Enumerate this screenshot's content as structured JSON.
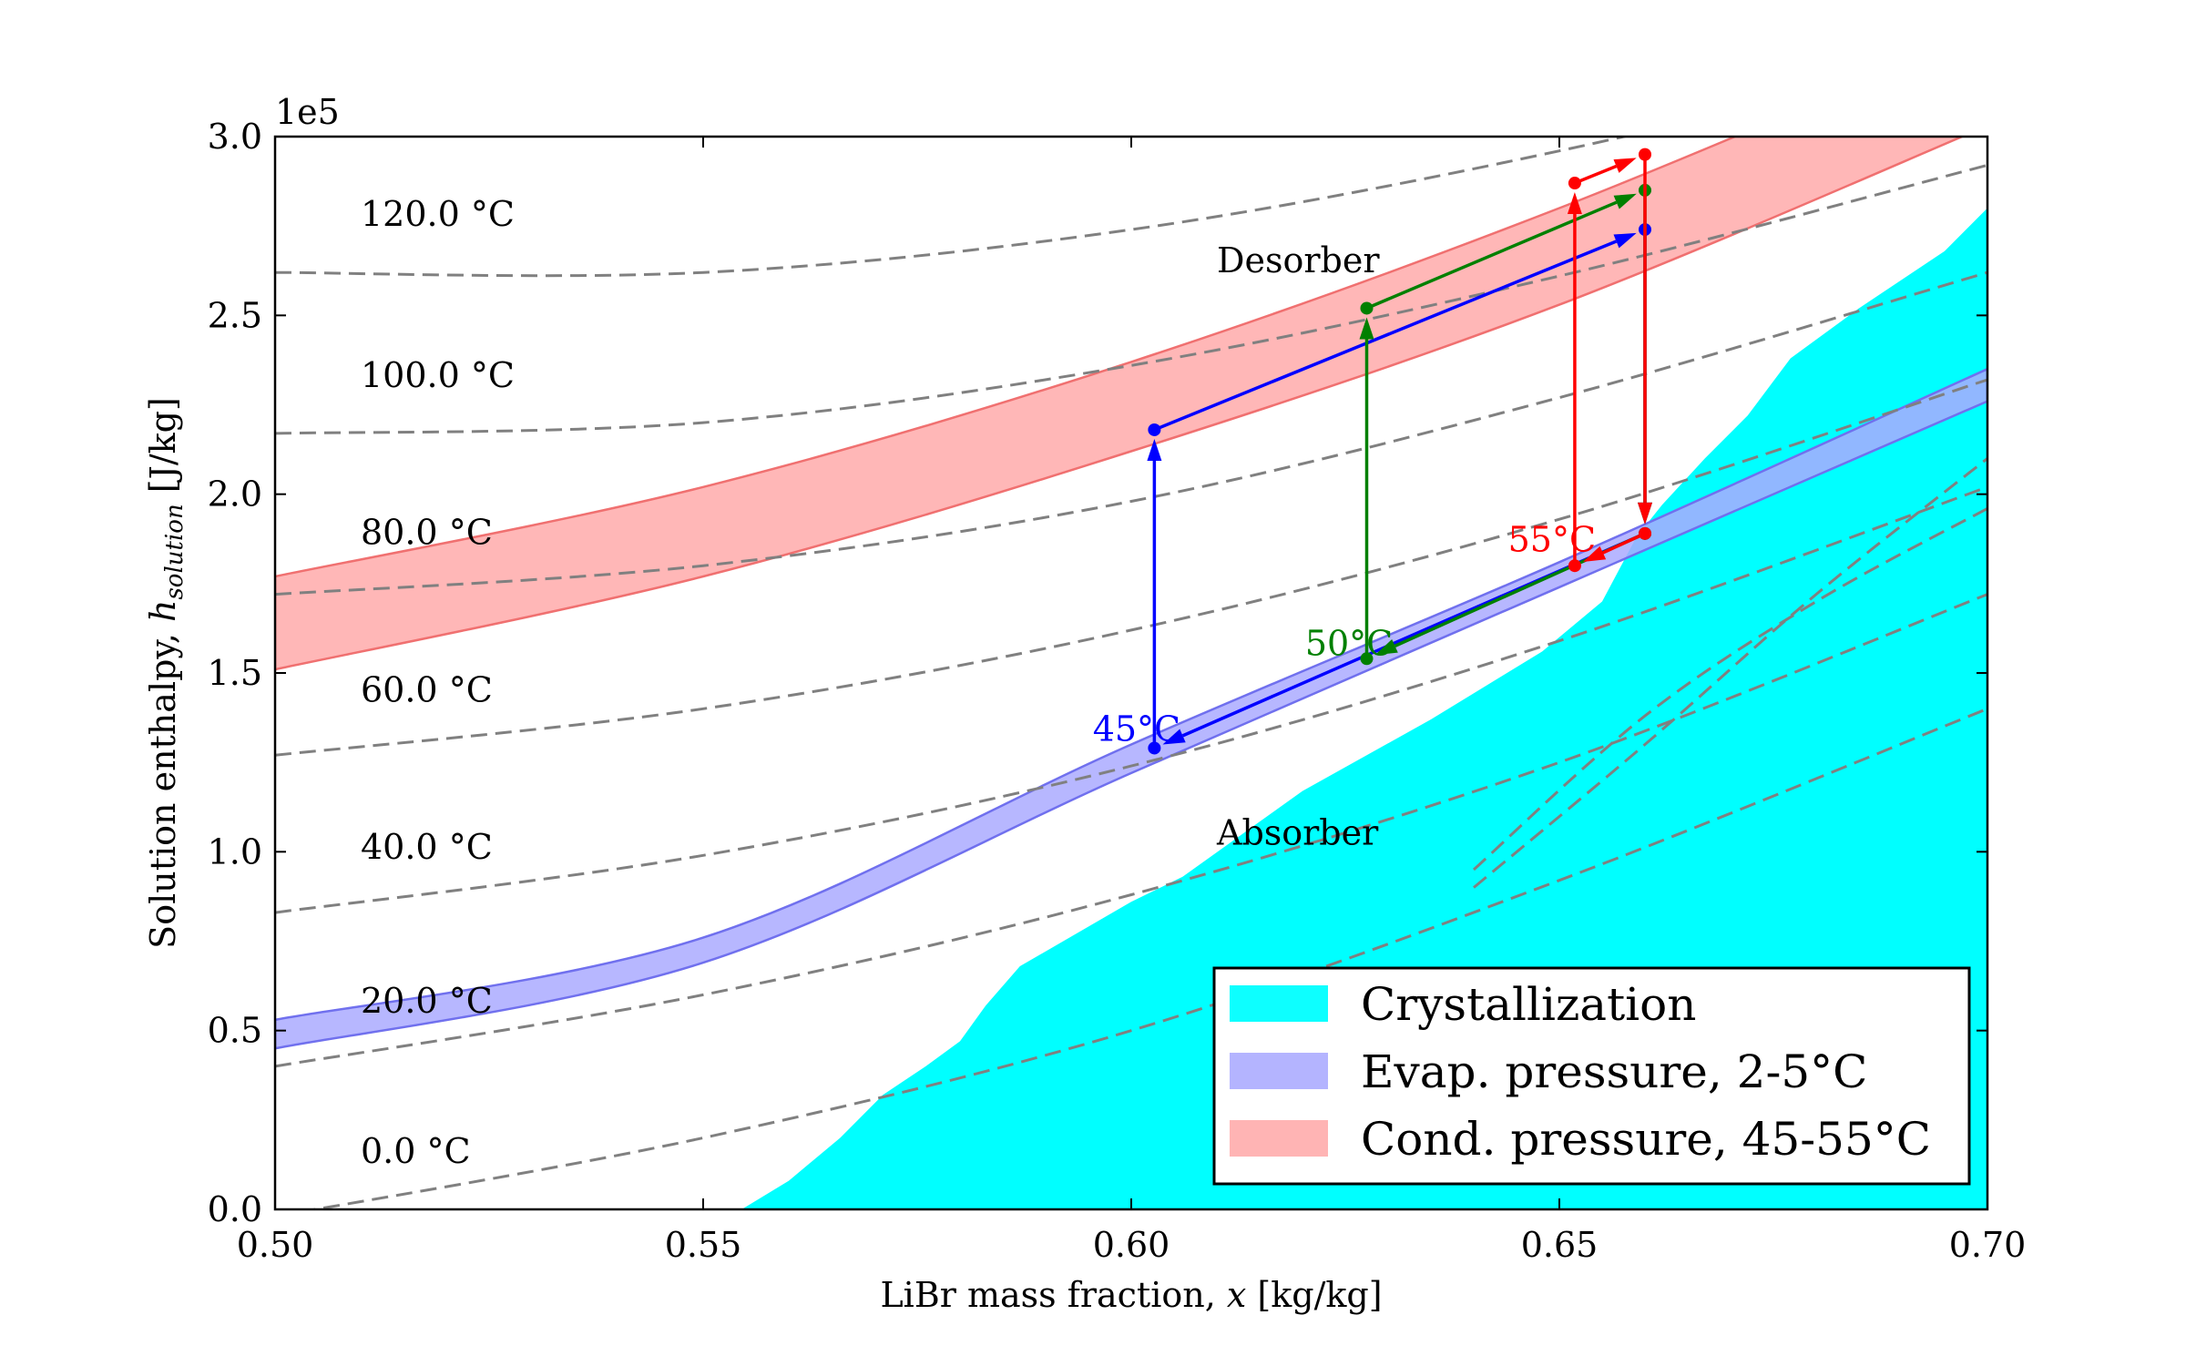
{
  "chart_data": {
    "type": "line",
    "title": "",
    "xlabel": "LiBr mass fraction, x [kg/kg]",
    "ylabel": "Solution enthalpy, h_solution [J/kg]",
    "x_label_parts": {
      "pre": "LiBr mass fraction, ",
      "var": "x",
      "post": " [kg/kg]"
    },
    "y_label_parts": {
      "pre": "Solution enthalpy, ",
      "var": "h",
      "sub": "solution",
      "post": " [J/kg]"
    },
    "y_multiplier": "1e5",
    "xlim": [
      0.5,
      0.7
    ],
    "ylim": [
      0.0,
      3.0
    ],
    "x_ticks": [
      0.5,
      0.55,
      0.6,
      0.65,
      0.7
    ],
    "x_tick_labels": [
      "0.50",
      "0.55",
      "0.60",
      "0.65",
      "0.70"
    ],
    "y_ticks": [
      0.0,
      0.5,
      1.0,
      1.5,
      2.0,
      2.5,
      3.0
    ],
    "y_tick_labels": [
      "0.0",
      "0.5",
      "1.0",
      "1.5",
      "2.0",
      "2.5",
      "3.0"
    ],
    "grid": false,
    "legend_position": "bottom-right",
    "isotherms": [
      {
        "label": "0.0 °C",
        "label_pos": [
          0.51,
          0.13
        ],
        "x": [
          0.5,
          0.55,
          0.6,
          0.65,
          0.7
        ],
        "y": [
          -0.02,
          0.2,
          0.5,
          0.92,
          1.4
        ]
      },
      {
        "label": "20.0 °C",
        "label_pos": [
          0.51,
          0.55
        ],
        "x": [
          0.5,
          0.55,
          0.6,
          0.65,
          0.7
        ],
        "y": [
          0.4,
          0.6,
          0.88,
          1.25,
          1.72
        ]
      },
      {
        "label": "40.0 °C",
        "label_pos": [
          0.51,
          0.98
        ],
        "x": [
          0.5,
          0.55,
          0.6,
          0.65,
          0.7
        ],
        "y": [
          0.83,
          0.99,
          1.24,
          1.59,
          2.02
        ]
      },
      {
        "label": "60.0 °C",
        "label_pos": [
          0.51,
          1.42
        ],
        "x": [
          0.5,
          0.55,
          0.6,
          0.65,
          0.7
        ],
        "y": [
          1.27,
          1.4,
          1.62,
          1.93,
          2.32
        ]
      },
      {
        "label": "80.0 °C",
        "label_pos": [
          0.51,
          1.86
        ],
        "x": [
          0.5,
          0.55,
          0.6,
          0.65,
          0.7
        ],
        "y": [
          1.72,
          1.8,
          1.98,
          2.27,
          2.62
        ]
      },
      {
        "label": "100.0 °C",
        "label_pos": [
          0.51,
          2.3
        ],
        "x": [
          0.5,
          0.55,
          0.6,
          0.65,
          0.7
        ],
        "y": [
          2.17,
          2.2,
          2.36,
          2.61,
          2.92
        ]
      },
      {
        "label": "120.0 °C",
        "label_pos": [
          0.51,
          2.75
        ],
        "x": [
          0.5,
          0.55,
          0.6,
          0.65,
          0.7
        ],
        "y": [
          2.62,
          2.62,
          2.74,
          2.96,
          3.25
        ]
      }
    ],
    "extra_dashed_lines": [
      {
        "x": [
          0.64,
          0.66,
          0.68,
          0.7
        ],
        "y": [
          0.9,
          1.3,
          1.72,
          2.1
        ]
      },
      {
        "x": [
          0.64,
          0.66,
          0.68,
          0.7
        ],
        "y": [
          0.95,
          1.38,
          1.7,
          1.96
        ]
      }
    ],
    "crystallization_boundary": {
      "x": [
        0.5545,
        0.56,
        0.566,
        0.571,
        0.576,
        0.58,
        0.583,
        0.587,
        0.6,
        0.606,
        0.62,
        0.635,
        0.648,
        0.655,
        0.659,
        0.662,
        0.667,
        0.672,
        0.677,
        0.685,
        0.69,
        0.695,
        0.7
      ],
      "y": [
        0.0,
        0.08,
        0.2,
        0.32,
        0.4,
        0.47,
        0.57,
        0.68,
        0.86,
        0.93,
        1.17,
        1.37,
        1.56,
        1.7,
        1.88,
        1.97,
        2.1,
        2.22,
        2.38,
        2.52,
        2.6,
        2.68,
        2.8
      ]
    },
    "evap_band": {
      "x": [
        0.5,
        0.55,
        0.6,
        0.65,
        0.7
      ],
      "upper": [
        0.53,
        0.76,
        1.3,
        1.81,
        2.35
      ],
      "lower": [
        0.45,
        0.69,
        1.22,
        1.74,
        2.26
      ]
    },
    "cond_band": {
      "x": [
        0.5,
        0.55,
        0.6,
        0.65,
        0.7
      ],
      "upper": [
        1.77,
        2.02,
        2.37,
        2.8,
        3.3
      ],
      "lower": [
        1.51,
        1.77,
        2.12,
        2.53,
        3.03
      ]
    },
    "region_labels": [
      {
        "text": "Desorber",
        "x": 0.61,
        "y": 2.62
      },
      {
        "text": "Absorber",
        "x": 0.61,
        "y": 1.02
      }
    ],
    "legend_patches": [
      {
        "label": "Crystallization",
        "color": "#00ffff"
      },
      {
        "label": "Evap. pressure, 2-5°C",
        "color": "#b0b0ff"
      },
      {
        "label": "Cond. pressure, 45-55°C",
        "color": "#ffb0b0"
      }
    ],
    "cycles": [
      {
        "label": "45°C",
        "color": "#0000ff",
        "label_pos": [
          0.5955,
          1.31
        ],
        "points": [
          [
            0.6027,
            1.29
          ],
          [
            0.6027,
            2.18
          ],
          [
            0.66,
            2.74
          ],
          [
            0.66,
            1.89
          ]
        ]
      },
      {
        "label": "50°C",
        "color": "#008000",
        "label_pos": [
          0.6203,
          1.55
        ],
        "points": [
          [
            0.6275,
            1.54
          ],
          [
            0.6275,
            2.52
          ],
          [
            0.66,
            2.85
          ],
          [
            0.66,
            1.89
          ]
        ]
      },
      {
        "label": "55°C",
        "color": "#ff0000",
        "label_pos": [
          0.644,
          1.84
        ],
        "points": [
          [
            0.6518,
            1.8
          ],
          [
            0.6518,
            2.87
          ],
          [
            0.66,
            2.95
          ],
          [
            0.66,
            1.89
          ]
        ]
      }
    ]
  },
  "colors": {
    "crystallization": "#00ffff",
    "evap_fill": "#aaaaff",
    "evap_edge": "#7070ee",
    "cond_fill": "#ffaaaa",
    "cond_edge": "#f07070",
    "isotherm": "#808080"
  }
}
